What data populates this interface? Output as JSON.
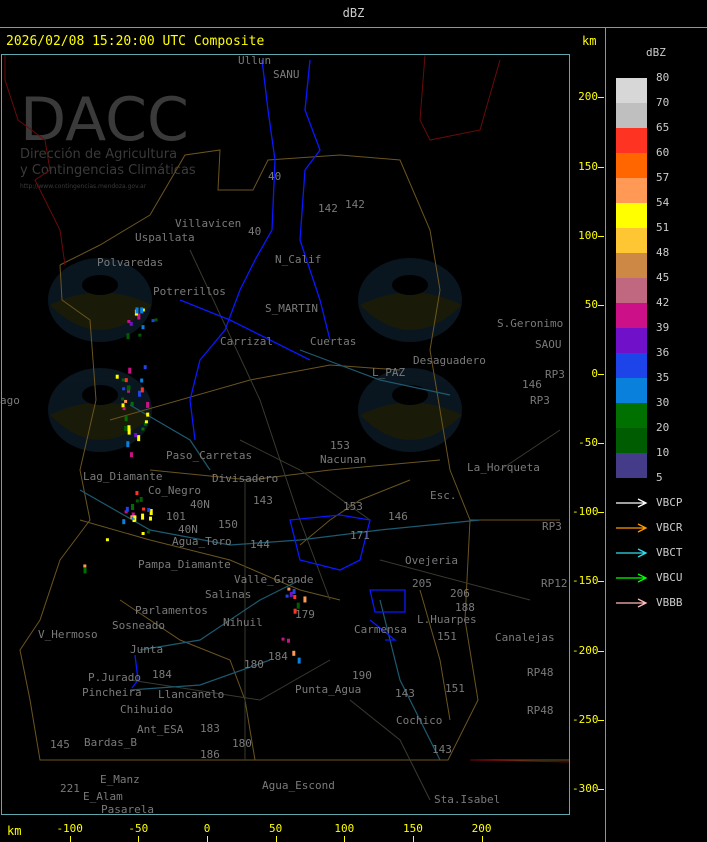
{
  "header": {
    "title": "dBZ"
  },
  "map": {
    "timestamp": "2026/02/08 15:20:00 UTC Composite",
    "unit_top": "km",
    "unit_bottom": "km",
    "y_axis_ticks": [
      "200",
      "150",
      "100",
      "50",
      "0",
      "-50",
      "-100",
      "-150",
      "-200",
      "-250",
      "-300"
    ],
    "x_axis_ticks": [
      "-100",
      "-50",
      "0",
      "50",
      "100",
      "150",
      "200"
    ],
    "watermark": {
      "logo_text": "DACC",
      "subtitle_line1": "Dirección de Agricultura",
      "subtitle_line2": "y Contingencias Climáticas",
      "url": "http://www.contingencias.mendoza.gov.ar"
    },
    "labels": [
      "Ullun",
      "SANU",
      "Villavicen",
      "Uspallata",
      "Polvaredas",
      "N_Calif",
      "142",
      "142",
      "Potrerillos",
      "S_MARTIN",
      "Carrizal",
      "Cuertas",
      "Desaguadero",
      "L_PAZ",
      "S.Geronimo",
      "SAOU",
      "RP3",
      "146",
      "RP3",
      "ago",
      "Paso_Carretas",
      "Lag_Diamante",
      "Co_Negro",
      "Divisadero",
      "Nacunan",
      "153",
      "La_Horqueta",
      "Esc.",
      "146",
      "153",
      "Agua_Toro",
      "Pampa_Diamante",
      "Valle_Grande",
      "Salinas",
      "Parlamentos",
      "Sosneado",
      "Nihuil",
      "V_Hermoso",
      "Junta",
      "P.Jurado",
      "Pincheira",
      "Llancanelo",
      "Chihuido",
      "Ant_ESA",
      "Bardas_B",
      "E_Manz",
      "E_Alam",
      "Pasarela",
      "Agua_Escond",
      "Punta_Agua",
      "Carmensa",
      "L.Huarpes",
      "Canalejas",
      "Ovejeria",
      "Cochico",
      "Sta.Isabel",
      "RP3",
      "RP12",
      "RP48",
      "RP48",
      "40",
      "40",
      "40N",
      "101",
      "40N",
      "150",
      "143",
      "144",
      "180",
      "184",
      "179",
      "190",
      "184",
      "180",
      "186",
      "183",
      "145",
      "221",
      "171",
      "205",
      "206",
      "188",
      "151",
      "151",
      "143",
      "143"
    ]
  },
  "legend": {
    "title": "dBZ",
    "levels": [
      "80",
      "70",
      "65",
      "60",
      "57",
      "54",
      "51",
      "48",
      "45",
      "42",
      "39",
      "36",
      "35",
      "30",
      "20",
      "10",
      "5"
    ],
    "colors": [
      "#d7d7d7",
      "#bfbfbf",
      "#ff3322",
      "#ff6600",
      "#ff9955",
      "#ffff00",
      "#ffc633",
      "#cc8844",
      "#c06880",
      "#cc1088",
      "#7010c8",
      "#1c44e8",
      "#0880dc",
      "#007000",
      "#005c00",
      "#443c88"
    ],
    "radars": [
      {
        "name": "VBCP",
        "color": "#ffffff"
      },
      {
        "name": "VBCR",
        "color": "#ff9900"
      },
      {
        "name": "VBCT",
        "color": "#33ddee"
      },
      {
        "name": "VBCU",
        "color": "#00ff00"
      },
      {
        "name": "VBBB",
        "color": "#ffbbbb"
      }
    ]
  }
}
